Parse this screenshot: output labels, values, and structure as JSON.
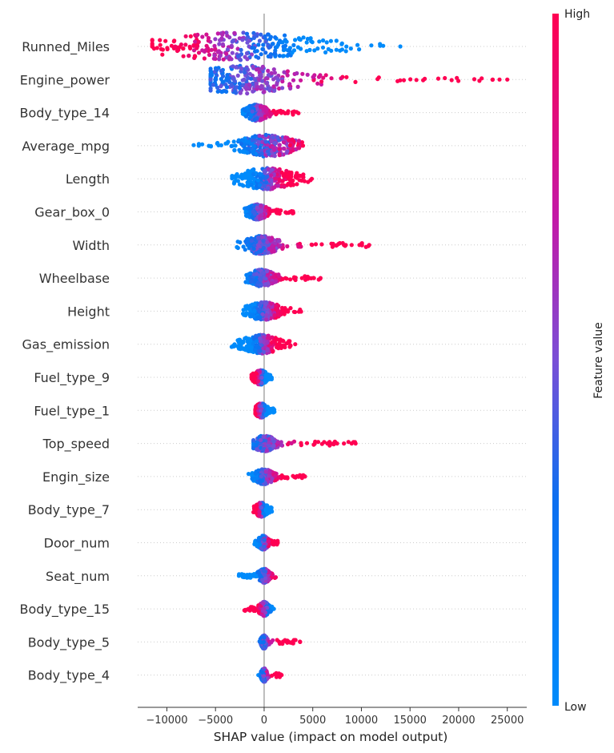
{
  "chart_data": {
    "type": "scatter",
    "subtype": "shap-beeswarm-summary",
    "xlabel": "SHAP value (impact on model output)",
    "xlim": [
      -13000,
      27000
    ],
    "xticks": [
      -10000,
      -5000,
      0,
      5000,
      10000,
      15000,
      20000,
      25000
    ],
    "xtick_labels": [
      "−10000",
      "−5000",
      "0",
      "5000",
      "10000",
      "15000",
      "20000",
      "25000"
    ],
    "colorbar": {
      "label": "Feature value",
      "high_label": "High",
      "low_label": "Low",
      "high_color": "#ff0052",
      "low_color": "#008bfb"
    },
    "features": [
      {
        "name": "Runned_Miles",
        "min": -11500,
        "max": 14000,
        "peak": -3000,
        "spread": 4500,
        "high_side": "left",
        "outliers": [
          14000
        ]
      },
      {
        "name": "Engine_power",
        "min": -5500,
        "max": 25000,
        "peak": -2000,
        "spread": 3000,
        "high_side": "right",
        "outliers": [
          23500,
          24200,
          25000
        ]
      },
      {
        "name": "Body_type_14",
        "min": -2200,
        "max": 3700,
        "peak": -800,
        "spread": 600,
        "high_side": "right",
        "outliers": []
      },
      {
        "name": "Average_mpg",
        "min": -7300,
        "max": 4000,
        "peak": 300,
        "spread": 1500,
        "high_side": "center",
        "outliers": [
          4000
        ]
      },
      {
        "name": "Length",
        "min": -3300,
        "max": 4900,
        "peak": 300,
        "spread": 1500,
        "high_side": "right",
        "outliers": [
          4900
        ]
      },
      {
        "name": "Gear_box_0",
        "min": -2000,
        "max": 3200,
        "peak": -700,
        "spread": 500,
        "high_side": "right",
        "outliers": []
      },
      {
        "name": "Width",
        "min": -2800,
        "max": 10800,
        "peak": -300,
        "spread": 900,
        "high_side": "right",
        "outliers": [
          7500,
          8200,
          9000,
          9800,
          10800
        ]
      },
      {
        "name": "Wheelbase",
        "min": -2000,
        "max": 5800,
        "peak": -300,
        "spread": 700,
        "high_side": "right",
        "outliers": [
          4600,
          5800
        ]
      },
      {
        "name": "Height",
        "min": -2200,
        "max": 4000,
        "peak": 0,
        "spread": 900,
        "high_side": "right",
        "outliers": []
      },
      {
        "name": "Gas_emission",
        "min": -3500,
        "max": 3200,
        "peak": -300,
        "spread": 1000,
        "high_side": "right",
        "outliers": [
          3200
        ]
      },
      {
        "name": "Fuel_type_9",
        "min": -1300,
        "max": 800,
        "peak": -400,
        "spread": 350,
        "high_side": "left",
        "outliers": []
      },
      {
        "name": "Fuel_type_1",
        "min": -900,
        "max": 1100,
        "peak": -300,
        "spread": 300,
        "high_side": "left",
        "outliers": []
      },
      {
        "name": "Top_speed",
        "min": -1100,
        "max": 9400,
        "peak": 0,
        "spread": 600,
        "high_side": "right",
        "outliers": [
          6500,
          7500,
          8200,
          9000,
          9400
        ]
      },
      {
        "name": "Engin_size",
        "min": -1600,
        "max": 4200,
        "peak": 0,
        "spread": 500,
        "high_side": "right",
        "outliers": [
          4200
        ]
      },
      {
        "name": "Body_type_7",
        "min": -1100,
        "max": 800,
        "peak": -300,
        "spread": 300,
        "high_side": "left",
        "outliers": []
      },
      {
        "name": "Door_num",
        "min": -1000,
        "max": 1400,
        "peak": -100,
        "spread": 250,
        "high_side": "center",
        "outliers": [
          1400
        ]
      },
      {
        "name": "Seat_num",
        "min": -2600,
        "max": 1200,
        "peak": 0,
        "spread": 300,
        "high_side": "right",
        "outliers": [
          -2600,
          -2200
        ]
      },
      {
        "name": "Body_type_15",
        "min": -2100,
        "max": 1000,
        "peak": 0,
        "spread": 250,
        "high_side": "left",
        "outliers": [
          1000
        ]
      },
      {
        "name": "Body_type_5",
        "min": -500,
        "max": 3700,
        "peak": 0,
        "spread": 150,
        "high_side": "right",
        "outliers": [
          3700
        ]
      },
      {
        "name": "Body_type_4",
        "min": -700,
        "max": 1800,
        "peak": 0,
        "spread": 150,
        "high_side": "right",
        "outliers": [
          1800
        ]
      }
    ]
  }
}
